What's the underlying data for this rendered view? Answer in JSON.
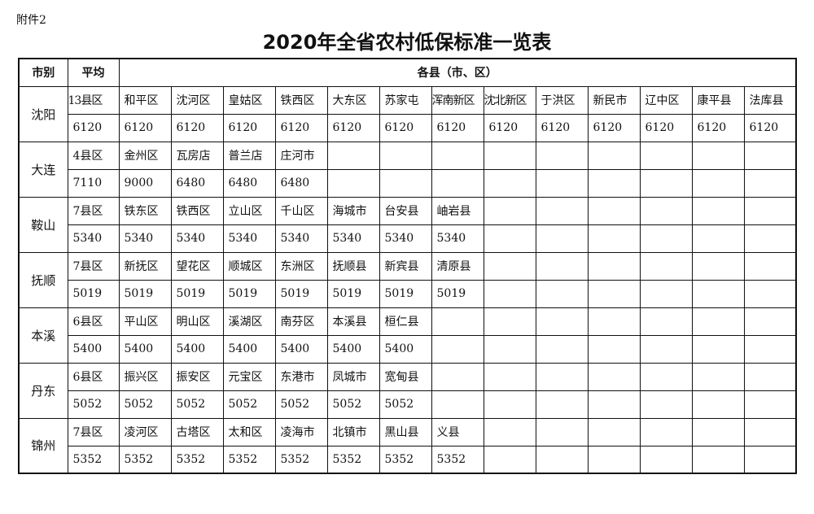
{
  "attachment": "附件2",
  "title": "2020年全省农村低保标准一览表",
  "header": {
    "city": "市别",
    "average": "平均",
    "counties": "各县（市、区）"
  },
  "rows": [
    {
      "city": "沈阳",
      "names": [
        "13县区",
        "和平区",
        "沈河区",
        "皇姑区",
        "铁西区",
        "大东区",
        "苏家屯",
        "浑南新区",
        "沈北新区",
        "于洪区",
        "新民市",
        "辽中区",
        "康平县",
        "法库县"
      ],
      "values": [
        "6120",
        "6120",
        "6120",
        "6120",
        "6120",
        "6120",
        "6120",
        "6120",
        "6120",
        "6120",
        "6120",
        "6120",
        "6120",
        "6120"
      ]
    },
    {
      "city": "大连",
      "names": [
        "4县区",
        "金州区",
        "瓦房店",
        "普兰店",
        "庄河市"
      ],
      "values": [
        "7110",
        "9000",
        "6480",
        "6480",
        "6480"
      ]
    },
    {
      "city": "鞍山",
      "names": [
        "7县区",
        "铁东区",
        "铁西区",
        "立山区",
        "千山区",
        "海城市",
        "台安县",
        "岫岩县"
      ],
      "values": [
        "5340",
        "5340",
        "5340",
        "5340",
        "5340",
        "5340",
        "5340",
        "5340"
      ]
    },
    {
      "city": "抚顺",
      "names": [
        "7县区",
        "新抚区",
        "望花区",
        "顺城区",
        "东洲区",
        "抚顺县",
        "新宾县",
        "清原县"
      ],
      "values": [
        "5019",
        "5019",
        "5019",
        "5019",
        "5019",
        "5019",
        "5019",
        "5019"
      ]
    },
    {
      "city": "本溪",
      "names": [
        "6县区",
        "平山区",
        "明山区",
        "溪湖区",
        "南芬区",
        "本溪县",
        "桓仁县"
      ],
      "values": [
        "5400",
        "5400",
        "5400",
        "5400",
        "5400",
        "5400",
        "5400"
      ]
    },
    {
      "city": "丹东",
      "names": [
        "6县区",
        "振兴区",
        "振安区",
        "元宝区",
        "东港市",
        "凤城市",
        "宽甸县"
      ],
      "values": [
        "5052",
        "5052",
        "5052",
        "5052",
        "5052",
        "5052",
        "5052"
      ]
    },
    {
      "city": "锦州",
      "names": [
        "7县区",
        "凌河区",
        "古塔区",
        "太和区",
        "凌海市",
        "北镇市",
        "黑山县",
        "义县"
      ],
      "values": [
        "5352",
        "5352",
        "5352",
        "5352",
        "5352",
        "5352",
        "5352",
        "5352"
      ]
    }
  ]
}
